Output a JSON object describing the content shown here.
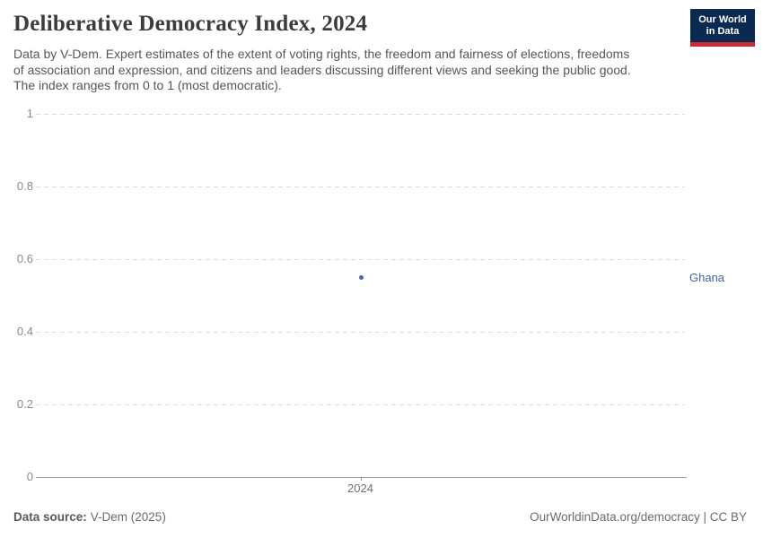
{
  "header": {
    "title": "Deliberative Democracy Index, 2024",
    "subtitle_lines": [
      "Data by V-Dem. Expert estimates of the extent of voting rights, the freedom and fairness of elections, freedoms",
      "of association and expression, and citizens and leaders discussing different views and seeking the public good.",
      "The index ranges from 0 to 1 (most democratic)."
    ],
    "logo": {
      "line1": "Our World",
      "line2": "in Data"
    }
  },
  "chart_data": {
    "type": "scatter",
    "title": "Deliberative Democracy Index, 2024",
    "x": [
      2024
    ],
    "series": [
      {
        "name": "Ghana",
        "values": [
          0.55
        ]
      }
    ],
    "x_ticks": [
      "2024"
    ],
    "y_ticks": [
      0,
      0.2,
      0.4,
      0.6,
      0.8,
      1
    ],
    "ylim": [
      0,
      1
    ],
    "xlabel": "",
    "ylabel": "",
    "grid": "horizontal-dashed",
    "legend_position": "right-of-plot",
    "grid_color": "#dcdcdc",
    "axis_color": "#9e9e9e",
    "tick_label_color": "#8b8b8b"
  },
  "colors": {
    "brand_navy": "#0a2a51",
    "brand_red": "#cc2a36",
    "point_blue": "#4a699e",
    "entity_label_blue": "#44629b"
  },
  "footer": {
    "source_label": "Data source:",
    "source_value": "V-Dem (2025)",
    "credit": "OurWorldinData.org/democracy | CC BY"
  }
}
